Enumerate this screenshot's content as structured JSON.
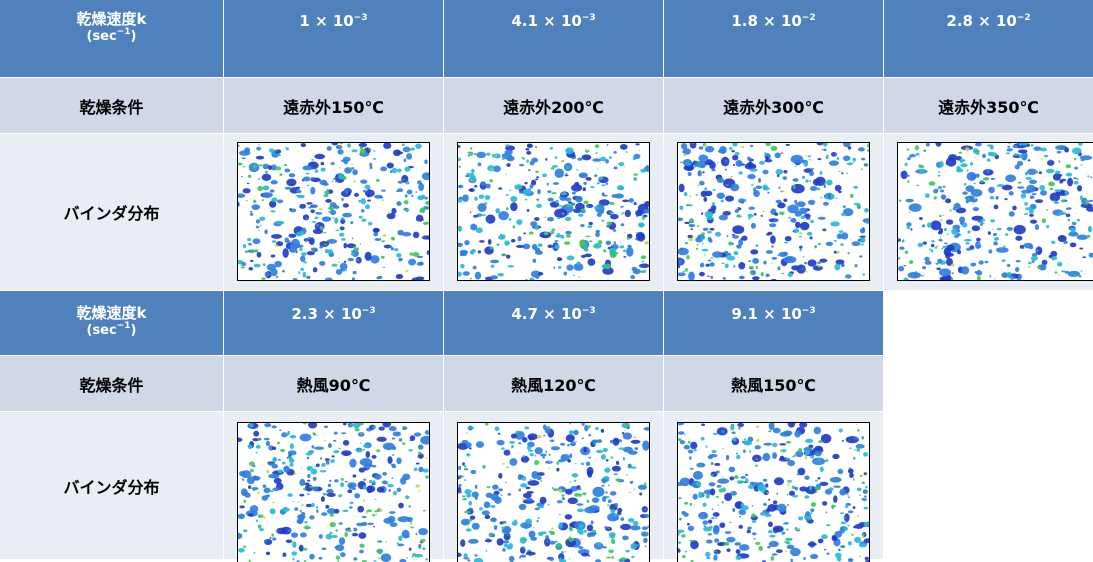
{
  "table_top": {
    "header": {
      "label_line1": "乾燥速度k",
      "label_line2_pre": "(sec",
      "label_line2_sup": "−1",
      "label_line2_post": ")",
      "values": [
        {
          "mantissa": "1 × 10",
          "exponent": "−3"
        },
        {
          "mantissa": "4.1 × 10",
          "exponent": "−3"
        },
        {
          "mantissa": "1.8 × 10",
          "exponent": "−2"
        },
        {
          "mantissa": "2.8 × 10",
          "exponent": "−2"
        }
      ]
    },
    "condition": {
      "label": "乾燥条件",
      "values": [
        "遠赤外150℃",
        "遠赤外200℃",
        "遠赤外300℃",
        "遠赤外350℃"
      ]
    },
    "distribution": {
      "label": "バインダ分布"
    }
  },
  "table_bottom": {
    "header": {
      "label_line1": "乾燥速度k",
      "label_line2_pre": "(sec",
      "label_line2_sup": "−1",
      "label_line2_post": ")",
      "values": [
        {
          "mantissa": "2.3 × 10",
          "exponent": "−3"
        },
        {
          "mantissa": "4.7 × 10",
          "exponent": "−3"
        },
        {
          "mantissa": "9.1 × 10",
          "exponent": "−3"
        }
      ]
    },
    "condition": {
      "label": "乾燥条件",
      "values": [
        "熱風90℃",
        "熱風120℃",
        "熱風150℃"
      ]
    },
    "distribution": {
      "label": "バインダ分布"
    }
  },
  "colors": {
    "header_bg": "#4f81bd",
    "condition_bg": "#d0d8e8",
    "image_row_bg": "#e9edf4",
    "colormap": [
      "#1f3cc8",
      "#2f7fe0",
      "#28b8d8",
      "#3ec85a",
      "#c8d83a",
      "#e89a2a",
      "#c83a2a"
    ]
  }
}
